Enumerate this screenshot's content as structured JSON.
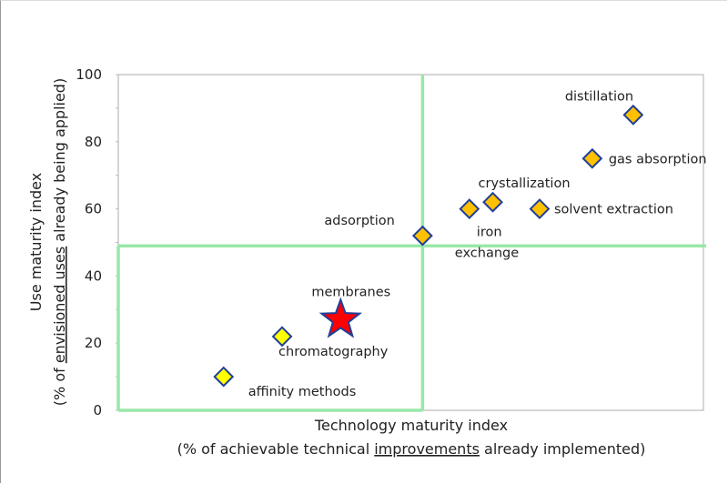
{
  "chart_data": {
    "type": "scatter",
    "title": "",
    "xlabel": {
      "line1": "Technology maturity index",
      "line2_parts": [
        {
          "text": "(% of achievable technical ",
          "underline": false
        },
        {
          "text": "improvements",
          "underline": true
        },
        {
          "text": " already implemented)",
          "underline": false
        }
      ]
    },
    "ylabel": {
      "line1": "Use maturity index",
      "line2_parts": [
        {
          "text": "(% of ",
          "underline": false
        },
        {
          "text": "envisioned uses",
          "underline": true
        },
        {
          "text": " already being applied)",
          "underline": false
        }
      ]
    },
    "xlim": [
      0,
      100
    ],
    "ylim": [
      0,
      100
    ],
    "yticks": [
      "0",
      "20",
      "40",
      "60",
      "80",
      "100"
    ],
    "ytick_values": [
      0,
      20,
      40,
      60,
      80,
      100
    ],
    "grid": false,
    "quadrant_lines": {
      "x": 52,
      "y": 49,
      "color": "#99E8A8"
    },
    "colors": {
      "marker_edge": "#1F3F99",
      "low_maturity": "#FFFF00",
      "high_maturity": "#FFC000",
      "star": "#FF0000"
    },
    "points": [
      {
        "label": "distillation",
        "x": 88,
        "y": 88,
        "marker": "diamond",
        "color": "#FFC000"
      },
      {
        "label": "gas absorption",
        "x": 81,
        "y": 75,
        "marker": "diamond",
        "color": "#FFC000"
      },
      {
        "label": "solvent extraction",
        "x": 72,
        "y": 60,
        "marker": "diamond",
        "color": "#FFC000"
      },
      {
        "label": "crystallization",
        "x": 64,
        "y": 62,
        "marker": "diamond",
        "color": "#FFC000"
      },
      {
        "label": "iron exchange",
        "x": 60,
        "y": 60,
        "marker": "diamond",
        "color": "#FFC000"
      },
      {
        "label": "adsorption",
        "x": 52,
        "y": 52,
        "marker": "diamond",
        "color": "#FFC000"
      },
      {
        "label": "membranes",
        "x": 38,
        "y": 27,
        "marker": "star",
        "color": "#FF0000"
      },
      {
        "label": "chromatography",
        "x": 28,
        "y": 22,
        "marker": "diamond",
        "color": "#FFFF00"
      },
      {
        "label": "affinity methods",
        "x": 18,
        "y": 10,
        "marker": "diamond",
        "color": "#FFFF00"
      }
    ]
  }
}
